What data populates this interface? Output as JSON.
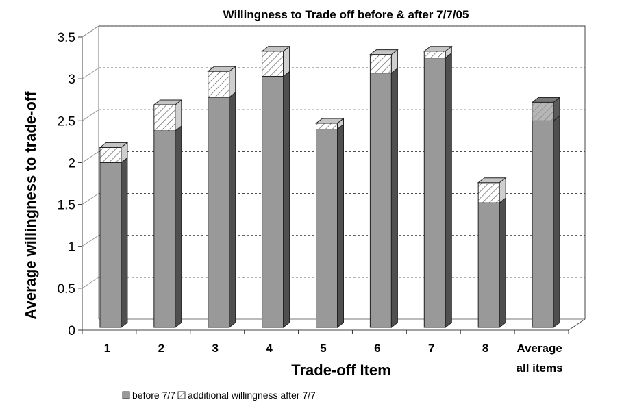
{
  "chart_data": {
    "type": "bar",
    "title": "Willingness to Trade off before & after 7/7/05",
    "xlabel": "Trade-off Item",
    "ylabel": "Average willingness to trade-off",
    "categories": [
      {
        "line1": "1",
        "line2": ""
      },
      {
        "line1": "2",
        "line2": ""
      },
      {
        "line1": "3",
        "line2": ""
      },
      {
        "line1": "4",
        "line2": ""
      },
      {
        "line1": "5",
        "line2": ""
      },
      {
        "line1": "6",
        "line2": ""
      },
      {
        "line1": "7",
        "line2": ""
      },
      {
        "line1": "8",
        "line2": ""
      },
      {
        "line1": "Average",
        "line2": "all items"
      }
    ],
    "stacked": true,
    "series": [
      {
        "name": "before 7/7",
        "color": "#999999",
        "values": [
          2.0,
          2.38,
          2.78,
          3.03,
          2.4,
          3.07,
          3.25,
          1.52,
          2.5
        ]
      },
      {
        "name": "additional willingness after 7/7",
        "color": "#ffffff",
        "pattern": "diagonal-hatch",
        "values": [
          0.18,
          0.31,
          0.31,
          0.3,
          0.07,
          0.22,
          0.08,
          0.24,
          0.22
        ]
      }
    ],
    "ylim": [
      0,
      3.5
    ],
    "yticks": [
      "0",
      "0.5",
      "1",
      "1.5",
      "2",
      "2.5",
      "3",
      "3.5"
    ],
    "grid": true,
    "legend_position": "bottom-left"
  }
}
